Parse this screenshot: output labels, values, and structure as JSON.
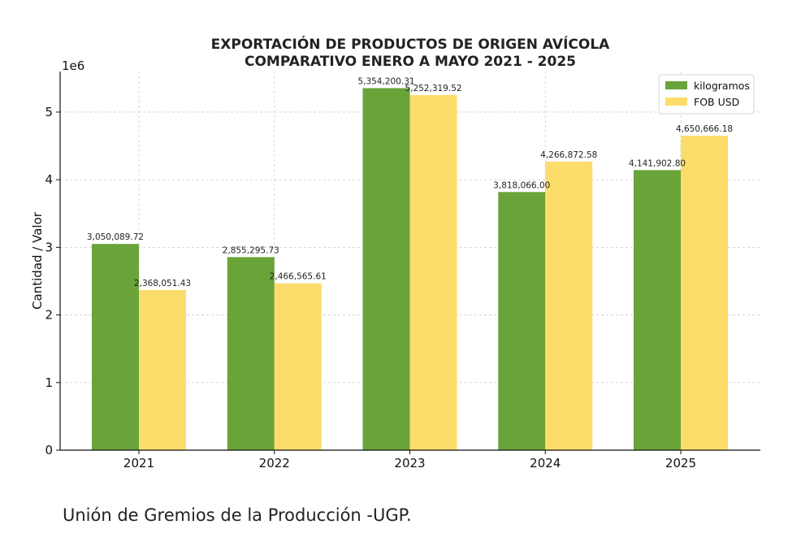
{
  "footer": "Unión de Gremios de la Producción -UGP.",
  "chart_data": {
    "type": "bar",
    "title_lines": [
      "EXPORTACIÓN DE PRODUCTOS DE ORIGEN AVÍCOLA",
      "COMPARATIVO ENERO A MAYO 2021 - 2025"
    ],
    "xlabel": "",
    "ylabel": "Cantidad / Valor",
    "scale_label": "1e6",
    "categories": [
      "2021",
      "2022",
      "2023",
      "2024",
      "2025"
    ],
    "ylim": [
      0,
      5600000
    ],
    "yticks": [
      0,
      1000000,
      2000000,
      3000000,
      4000000,
      5000000
    ],
    "ytick_labels": [
      "0",
      "1",
      "2",
      "3",
      "4",
      "5"
    ],
    "grid": true,
    "legend_position": "top-right",
    "series": [
      {
        "name": "kilogramos",
        "color": "#6aa33a",
        "values": [
          3050089.72,
          2855295.73,
          5354200.31,
          3818066.0,
          4141902.8
        ],
        "labels": [
          "3,050,089.72",
          "2,855,295.73",
          "5,354,200.31",
          "3,818,066.00",
          "4,141,902.80"
        ]
      },
      {
        "name": "FOB USD",
        "color": "#fcdd6b",
        "values": [
          2368051.43,
          2466565.61,
          5252319.52,
          4266872.58,
          4650666.18
        ],
        "labels": [
          "2,368,051.43",
          "2,466,565.61",
          "5,252,319.52",
          "4,266,872.58",
          "4,650,666.18"
        ]
      }
    ]
  }
}
